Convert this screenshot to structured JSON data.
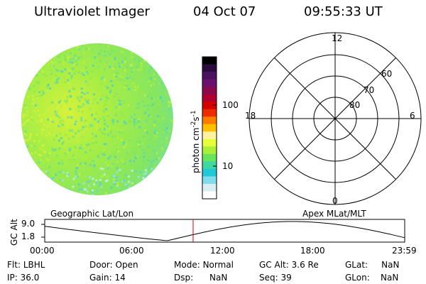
{
  "header": {
    "title": "Ultraviolet Imager",
    "date": "04 Oct 07",
    "time": "09:55:33 UT"
  },
  "colorbar": {
    "unit_label": "photon cm",
    "unit_exp1": "-2",
    "unit_s": "s",
    "unit_exp2": "-1",
    "ticks": [
      "100",
      "10"
    ],
    "colors": [
      "#000000",
      "#2b0a3d",
      "#4a1060",
      "#6a1070",
      "#8a0a50",
      "#b00030",
      "#d40000",
      "#ee2a00",
      "#ff7a00",
      "#ffbf00",
      "#fff3a0",
      "#e6ff3a",
      "#a8f03a",
      "#6ae45a",
      "#3ed7a0",
      "#20c8d8",
      "#7fdcea",
      "#d8eef2",
      "#ffffff"
    ]
  },
  "polar_plot": {
    "mlt_labels": [
      "12",
      "18",
      "6",
      "0"
    ],
    "lat_labels": [
      "60",
      "70",
      "80"
    ],
    "top_label": "Apex MLat/MLT"
  },
  "image_panel": {
    "label": "Geographic Lat/Lon"
  },
  "timeline": {
    "axis_title": "GC Alt",
    "y_ticks": [
      "9.0",
      "1.8"
    ],
    "x_ticks": [
      "00:00",
      "06:00",
      "12:00",
      "18:00",
      "23:59"
    ]
  },
  "status": {
    "row1": [
      {
        "key": "Flt:",
        "value": "LBHL"
      },
      {
        "key": "Door:",
        "value": "Open"
      },
      {
        "key": "Mode:",
        "value": "Normal"
      },
      {
        "key": "GC Alt:",
        "value": "3.6 Re"
      },
      {
        "key": "GLat:",
        "value": "NaN"
      }
    ],
    "row2": [
      {
        "key": "IP:",
        "value": "36.0"
      },
      {
        "key": "Gain:",
        "value": "14"
      },
      {
        "key": "Dsp:",
        "value": "NaN"
      },
      {
        "key": "Seq:",
        "value": "39"
      },
      {
        "key": "GLon:",
        "value": "NaN"
      }
    ]
  },
  "colors": {
    "marker": "#cc0000",
    "disk_base": "#9cee4a"
  }
}
